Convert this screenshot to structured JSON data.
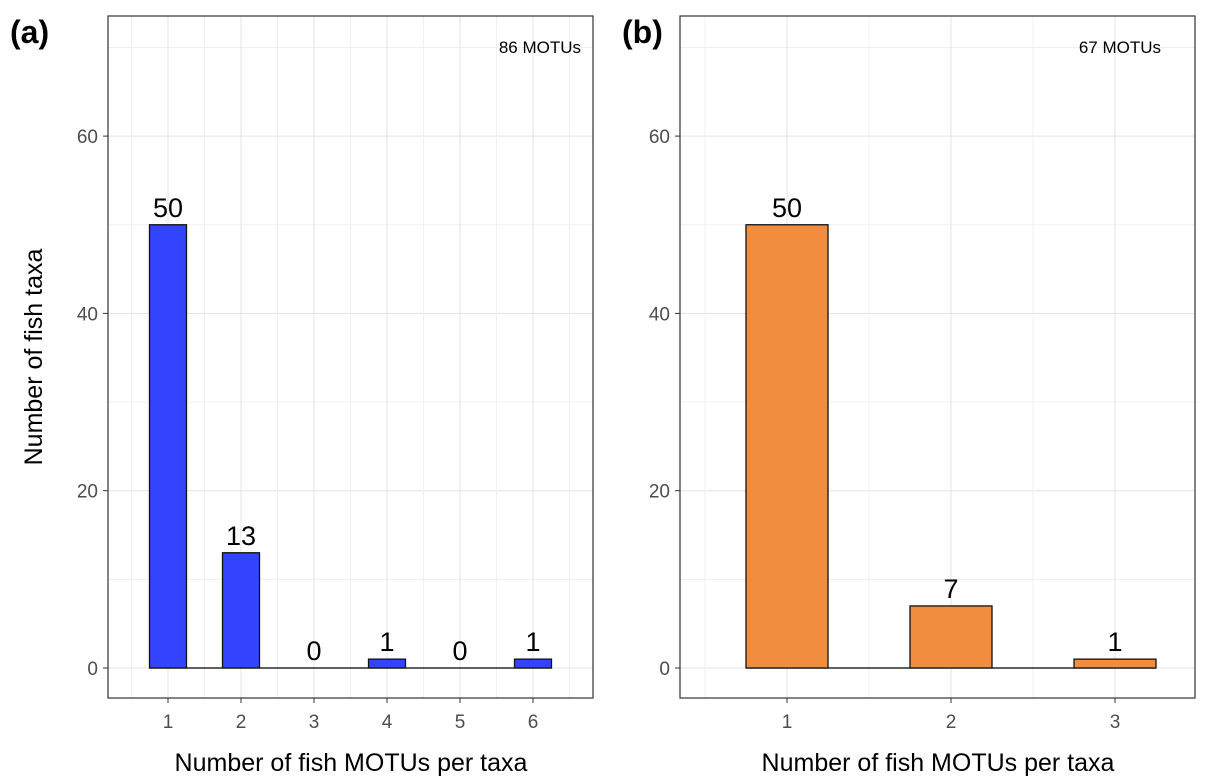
{
  "chart_data": [
    {
      "type": "bar",
      "panel_label": "(a)",
      "annotation": "86 MOTUs",
      "categories": [
        "1",
        "2",
        "3",
        "4",
        "5",
        "6"
      ],
      "values": [
        50,
        13,
        0,
        1,
        0,
        1
      ],
      "data_labels": [
        "50",
        "13",
        "0",
        "1",
        "0",
        "1"
      ],
      "xlabel": "Number of fish MOTUs per taxa",
      "ylabel": "Number of fish taxa",
      "yticks": [
        "0",
        "20",
        "40",
        "60"
      ],
      "ylim": [
        0,
        75
      ],
      "grid": true,
      "bar_color": "#3344ff"
    },
    {
      "type": "bar",
      "panel_label": "(b)",
      "annotation": "67 MOTUs",
      "categories": [
        "1",
        "2",
        "3"
      ],
      "values": [
        50,
        7,
        1
      ],
      "data_labels": [
        "50",
        "7",
        "1"
      ],
      "xlabel": "Number of fish MOTUs per taxa",
      "ylabel": "",
      "yticks": [
        "0",
        "20",
        "40",
        "60"
      ],
      "ylim": [
        0,
        75
      ],
      "grid": true,
      "bar_color": "#f28c3f"
    }
  ]
}
